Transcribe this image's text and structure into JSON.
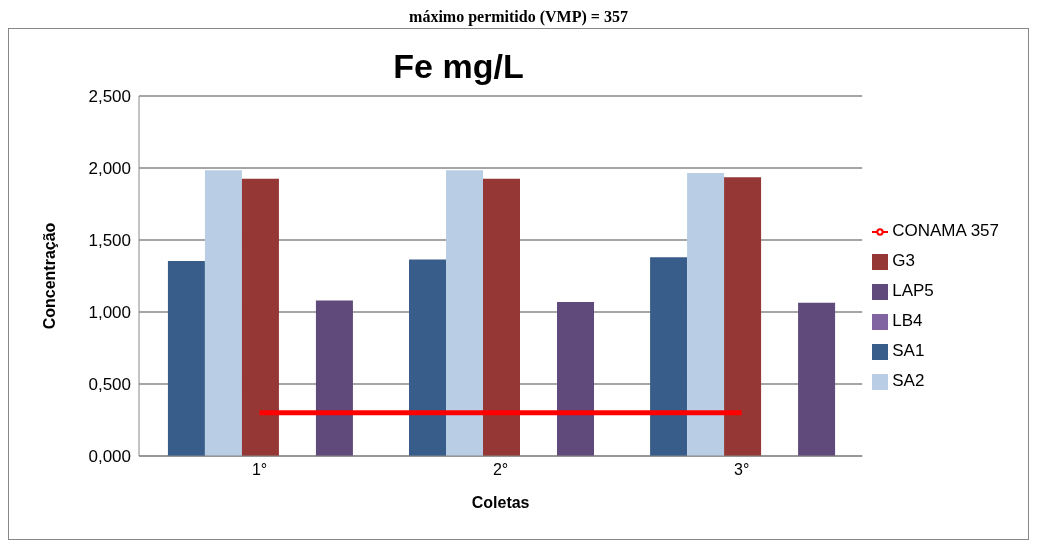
{
  "chart_data": {
    "type": "bar",
    "title": "Fe mg/L",
    "xlabel": "Coletas",
    "ylabel": "Concentração",
    "annotations": [
      "máximo permitido (VMP) = 357"
    ],
    "categories": [
      "1°",
      "2°",
      "3°"
    ],
    "series": [
      {
        "name": "SA1",
        "color": "#385d8a",
        "values": [
          1.355,
          1.365,
          1.38
        ]
      },
      {
        "name": "SA2",
        "color": "#b9cde5",
        "values": [
          1.985,
          1.985,
          1.965
        ]
      },
      {
        "name": "G3",
        "color": "#953735",
        "values": [
          1.925,
          1.925,
          1.935
        ]
      },
      {
        "name": "LB4",
        "color": "#8064a2",
        "values": [
          null,
          null,
          null
        ]
      },
      {
        "name": "LAP5",
        "color": "#604a7b",
        "values": [
          1.08,
          1.07,
          1.065
        ]
      },
      {
        "name": "CONAMA 357",
        "type": "line",
        "color": "#ff0000",
        "values": [
          0.3,
          0.3,
          0.3
        ]
      }
    ],
    "ylim": [
      0,
      2.5
    ],
    "yticks": [
      {
        "value": 0,
        "label": "0,000"
      },
      {
        "value": 0.5,
        "label": "0,500"
      },
      {
        "value": 1,
        "label": "1,000"
      },
      {
        "value": 1.5,
        "label": "1,500"
      },
      {
        "value": 2,
        "label": "2,000"
      },
      {
        "value": 2.5,
        "label": "2,500"
      }
    ],
    "grid": "y",
    "legend": "right"
  }
}
